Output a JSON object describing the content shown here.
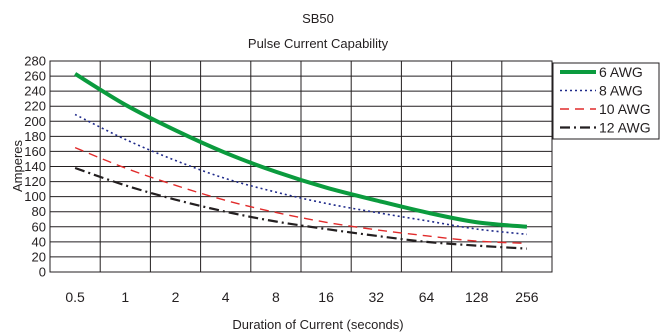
{
  "chart_data": {
    "type": "line",
    "title": "SB50",
    "subtitle": "Pulse Current Capability",
    "xlabel": "Duration of Current (seconds)",
    "ylabel": "Amperes",
    "x_scale": "log2",
    "categories": [
      "0.5",
      "1",
      "2",
      "4",
      "8",
      "16",
      "32",
      "64",
      "128",
      "256"
    ],
    "ylim": [
      0,
      280
    ],
    "ytick_step": 20,
    "grid": true,
    "legend_position": "right",
    "series": [
      {
        "name": "6 AWG",
        "color": "#0b9b3e",
        "style": "solid",
        "values": [
          263,
          222,
          188,
          158,
          133,
          112,
          95,
          79,
          66,
          60
        ]
      },
      {
        "name": "8 AWG",
        "color": "#1f2a8a",
        "style": "dotted",
        "values": [
          209,
          176,
          148,
          124,
          106,
          91,
          79,
          68,
          57,
          50
        ]
      },
      {
        "name": "10 AWG",
        "color": "#e12b2b",
        "style": "dashed",
        "values": [
          165,
          138,
          115,
          95,
          79,
          66,
          56,
          48,
          41,
          38
        ]
      },
      {
        "name": "12 AWG",
        "color": "#231f20",
        "style": "dashdot",
        "values": [
          138,
          115,
          96,
          80,
          67,
          57,
          48,
          40,
          35,
          31
        ]
      }
    ]
  }
}
